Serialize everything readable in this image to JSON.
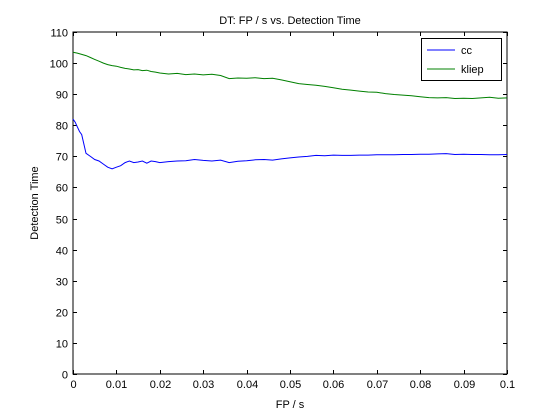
{
  "chart_data": {
    "type": "line",
    "title": "DT: FP / s vs. Detection Time",
    "xlabel": "FP / s",
    "ylabel": "Detection Time",
    "xlim": [
      0,
      0.1
    ],
    "ylim": [
      0,
      110
    ],
    "xticks": [
      0,
      0.01,
      0.02,
      0.03,
      0.04,
      0.05,
      0.06,
      0.07,
      0.08,
      0.09,
      0.1
    ],
    "xtick_labels": [
      "0",
      "0.01",
      "0.02",
      "0.03",
      "0.04",
      "0.05",
      "0.06",
      "0.07",
      "0.08",
      "0.09",
      "0.1"
    ],
    "yticks": [
      0,
      10,
      20,
      30,
      40,
      50,
      60,
      70,
      80,
      90,
      100,
      110
    ],
    "ytick_labels": [
      "0",
      "10",
      "20",
      "30",
      "40",
      "50",
      "60",
      "70",
      "80",
      "90",
      "100",
      "110"
    ],
    "grid": false,
    "legend_position": "top-right",
    "series": [
      {
        "name": "cc",
        "color": "#0000ff",
        "x": [
          0,
          0.0005,
          0.001,
          0.0015,
          0.002,
          0.003,
          0.004,
          0.005,
          0.006,
          0.007,
          0.008,
          0.009,
          0.01,
          0.011,
          0.012,
          0.013,
          0.014,
          0.015,
          0.016,
          0.017,
          0.018,
          0.019,
          0.02,
          0.022,
          0.024,
          0.026,
          0.028,
          0.03,
          0.032,
          0.034,
          0.036,
          0.038,
          0.04,
          0.042,
          0.044,
          0.046,
          0.048,
          0.05,
          0.052,
          0.054,
          0.056,
          0.058,
          0.06,
          0.062,
          0.064,
          0.066,
          0.068,
          0.07,
          0.072,
          0.074,
          0.076,
          0.078,
          0.08,
          0.082,
          0.084,
          0.086,
          0.088,
          0.09,
          0.092,
          0.094,
          0.096,
          0.098,
          0.1
        ],
        "y": [
          82,
          81,
          79.5,
          78,
          77,
          71,
          70,
          69,
          68.5,
          67.5,
          66.5,
          66,
          66.5,
          67,
          68,
          68.5,
          68,
          68.2,
          68.5,
          67.8,
          68.5,
          68.3,
          68,
          68.3,
          68.5,
          68.6,
          69,
          68.7,
          68.5,
          68.8,
          68,
          68.4,
          68.6,
          68.9,
          69,
          68.8,
          69.2,
          69.5,
          69.8,
          70,
          70.3,
          70.2,
          70.4,
          70.3,
          70.3,
          70.4,
          70.4,
          70.5,
          70.5,
          70.5,
          70.6,
          70.6,
          70.7,
          70.7,
          70.8,
          70.9,
          70.6,
          70.7,
          70.6,
          70.6,
          70.5,
          70.5,
          70.6
        ]
      },
      {
        "name": "kliep",
        "color": "#008000",
        "x": [
          0,
          0.001,
          0.002,
          0.003,
          0.004,
          0.005,
          0.006,
          0.007,
          0.008,
          0.009,
          0.01,
          0.011,
          0.012,
          0.013,
          0.014,
          0.015,
          0.016,
          0.017,
          0.018,
          0.019,
          0.02,
          0.022,
          0.024,
          0.026,
          0.028,
          0.03,
          0.032,
          0.034,
          0.036,
          0.038,
          0.04,
          0.042,
          0.044,
          0.046,
          0.048,
          0.05,
          0.052,
          0.054,
          0.056,
          0.058,
          0.06,
          0.062,
          0.064,
          0.066,
          0.068,
          0.07,
          0.072,
          0.074,
          0.076,
          0.078,
          0.08,
          0.082,
          0.084,
          0.086,
          0.088,
          0.09,
          0.092,
          0.094,
          0.096,
          0.098,
          0.1
        ],
        "y": [
          103.5,
          103.2,
          102.8,
          102.4,
          101.8,
          101.2,
          100.6,
          100,
          99.5,
          99.2,
          99,
          98.6,
          98.3,
          98.1,
          97.8,
          97.9,
          97.6,
          97.7,
          97.3,
          97.1,
          96.8,
          96.5,
          96.7,
          96.3,
          96.5,
          96.2,
          96.4,
          96,
          95,
          95.2,
          95.1,
          95.3,
          95.0,
          95.1,
          94.6,
          94.0,
          93.4,
          93.1,
          92.9,
          92.5,
          92.1,
          91.6,
          91.3,
          91.0,
          90.7,
          90.6,
          90.2,
          89.9,
          89.7,
          89.5,
          89.2,
          88.9,
          88.8,
          88.9,
          88.6,
          88.7,
          88.6,
          88.8,
          89.0,
          88.7,
          88.8
        ]
      }
    ]
  }
}
